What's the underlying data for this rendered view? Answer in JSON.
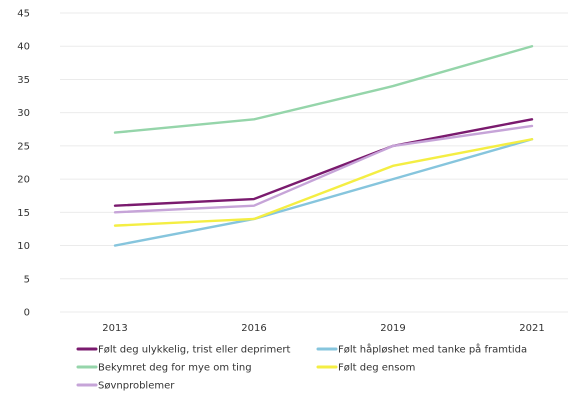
{
  "chart_data": {
    "type": "line",
    "categories": [
      "2013",
      "2016",
      "2019",
      "2021"
    ],
    "ylim": [
      0,
      45
    ],
    "yticks": [
      0,
      5,
      10,
      15,
      20,
      25,
      30,
      35,
      40,
      45
    ],
    "grid": "horizontal",
    "legend_position": "bottom",
    "series": [
      {
        "name": "Følt deg ulykkelig, trist eller deprimert",
        "color": "#7a1a6e",
        "values": [
          16,
          17,
          25,
          29
        ]
      },
      {
        "name": "Følt håpløshet med tanke på framtida",
        "color": "#86c5dd",
        "values": [
          10,
          14,
          20,
          26
        ]
      },
      {
        "name": "Bekymret deg for mye om ting",
        "color": "#95d5aa",
        "values": [
          27,
          29,
          34,
          40
        ]
      },
      {
        "name": "Følt deg ensom",
        "color": "#f4ee43",
        "values": [
          13,
          14,
          22,
          26
        ]
      },
      {
        "name": "Søvnproblemer",
        "color": "#c6a4d8",
        "values": [
          15,
          16,
          25,
          28
        ]
      }
    ]
  }
}
